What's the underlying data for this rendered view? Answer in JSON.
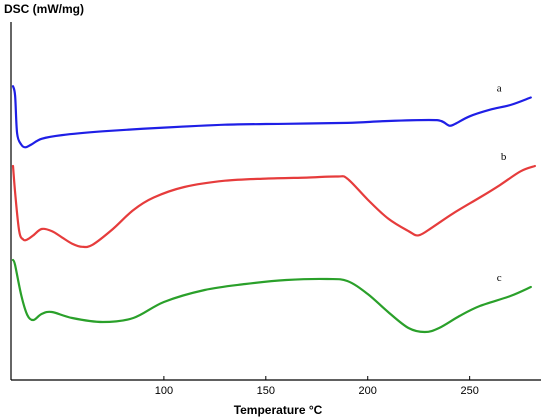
{
  "chart_data": {
    "type": "line",
    "ylabel": "DSC (mW/mg)",
    "xlabel": "Temperature °C",
    "xticks": [
      100,
      150,
      200,
      250
    ],
    "xlim": [
      25,
      285
    ],
    "grid": false,
    "legend": "none",
    "series": [
      {
        "name": "a",
        "color": "#1f1fe6",
        "points": [
          [
            26,
            0.7
          ],
          [
            27,
            0.6
          ],
          [
            28,
            0.2
          ],
          [
            30,
            0.08
          ],
          [
            32,
            0.05
          ],
          [
            35,
            0.08
          ],
          [
            40,
            0.14
          ],
          [
            50,
            0.18
          ],
          [
            70,
            0.22
          ],
          [
            100,
            0.26
          ],
          [
            130,
            0.29
          ],
          [
            160,
            0.3
          ],
          [
            190,
            0.31
          ],
          [
            210,
            0.33
          ],
          [
            230,
            0.34
          ],
          [
            236,
            0.33
          ],
          [
            240,
            0.28
          ],
          [
            243,
            0.3
          ],
          [
            250,
            0.38
          ],
          [
            260,
            0.45
          ],
          [
            270,
            0.5
          ],
          [
            280,
            0.58
          ]
        ]
      },
      {
        "name": "b",
        "color": "#e63c3c",
        "points": [
          [
            26,
            0.8
          ],
          [
            27,
            0.55
          ],
          [
            29,
            0.18
          ],
          [
            31,
            0.1
          ],
          [
            33,
            0.1
          ],
          [
            36,
            0.14
          ],
          [
            40,
            0.2
          ],
          [
            45,
            0.18
          ],
          [
            50,
            0.12
          ],
          [
            55,
            0.06
          ],
          [
            60,
            0.03
          ],
          [
            65,
            0.05
          ],
          [
            75,
            0.2
          ],
          [
            85,
            0.38
          ],
          [
            95,
            0.5
          ],
          [
            110,
            0.6
          ],
          [
            130,
            0.66
          ],
          [
            150,
            0.68
          ],
          [
            170,
            0.69
          ],
          [
            185,
            0.7
          ],
          [
            190,
            0.68
          ],
          [
            200,
            0.48
          ],
          [
            210,
            0.3
          ],
          [
            220,
            0.18
          ],
          [
            225,
            0.14
          ],
          [
            232,
            0.22
          ],
          [
            242,
            0.35
          ],
          [
            255,
            0.5
          ],
          [
            265,
            0.62
          ],
          [
            275,
            0.75
          ],
          [
            282,
            0.8
          ]
        ]
      },
      {
        "name": "c",
        "color": "#2aa02a",
        "points": [
          [
            26,
            0.9
          ],
          [
            27,
            0.85
          ],
          [
            30,
            0.55
          ],
          [
            33,
            0.35
          ],
          [
            36,
            0.3
          ],
          [
            40,
            0.36
          ],
          [
            45,
            0.38
          ],
          [
            55,
            0.32
          ],
          [
            70,
            0.28
          ],
          [
            85,
            0.32
          ],
          [
            100,
            0.48
          ],
          [
            120,
            0.6
          ],
          [
            140,
            0.66
          ],
          [
            160,
            0.7
          ],
          [
            180,
            0.71
          ],
          [
            190,
            0.69
          ],
          [
            200,
            0.56
          ],
          [
            210,
            0.38
          ],
          [
            220,
            0.22
          ],
          [
            228,
            0.18
          ],
          [
            235,
            0.22
          ],
          [
            245,
            0.34
          ],
          [
            255,
            0.44
          ],
          [
            270,
            0.54
          ],
          [
            280,
            0.63
          ]
        ]
      }
    ]
  }
}
